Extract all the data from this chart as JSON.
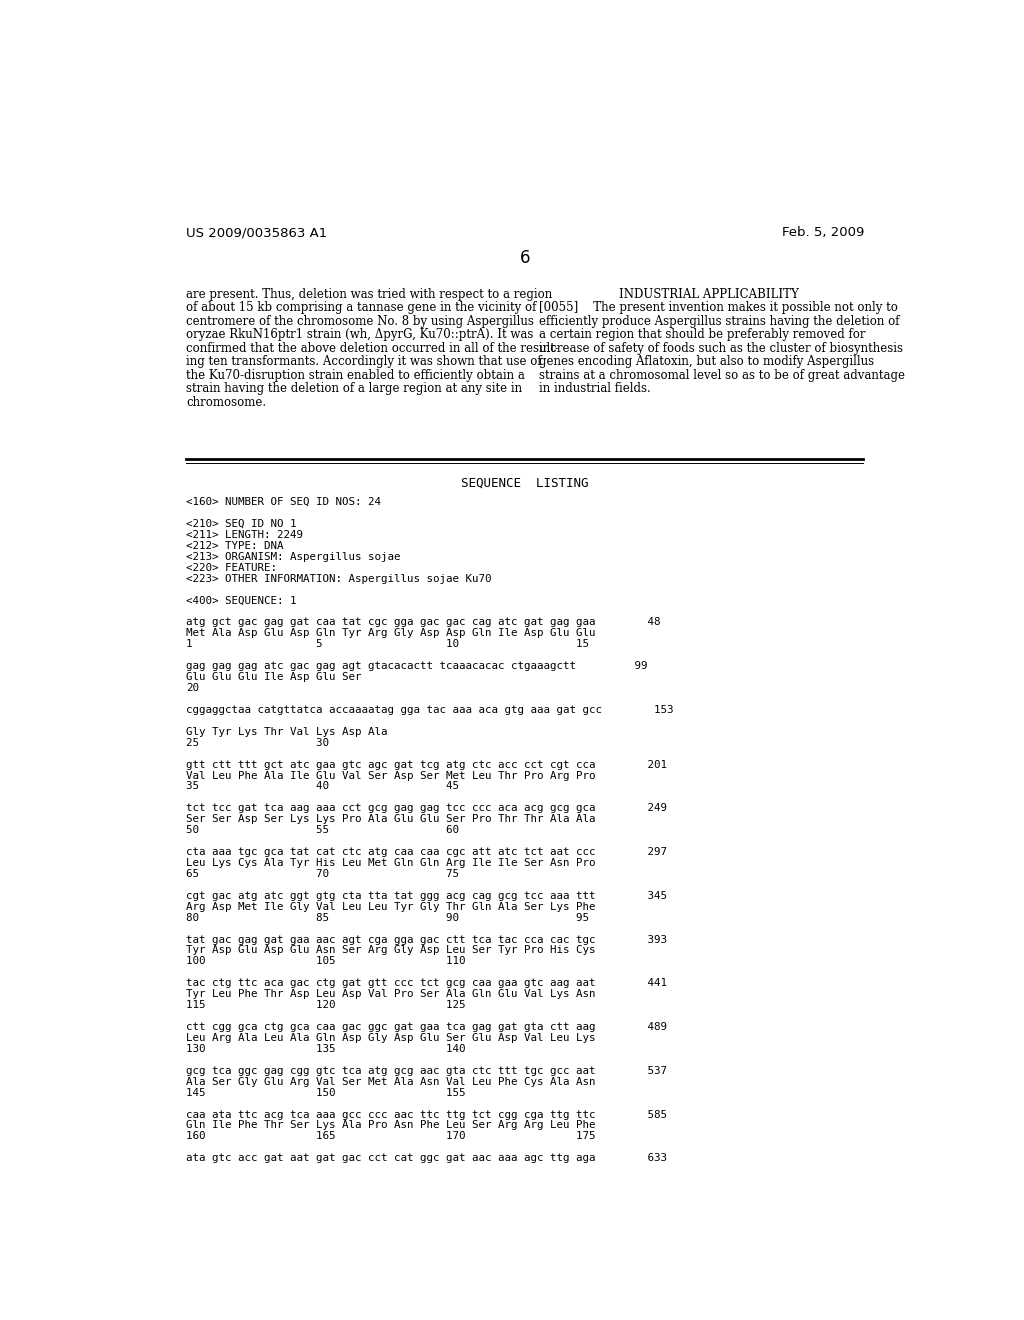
{
  "page_header_left": "US 2009/0035863 A1",
  "page_header_right": "Feb. 5, 2009",
  "page_number": "6",
  "left_column_text": [
    "are present. Thus, deletion was tried with respect to a region",
    "of about 15 kb comprising a tannase gene in the vicinity of",
    "centromere of the chromosome No. 8 by using Aspergillus",
    "oryzae RkuN16ptr1 strain (wh, ΔpyrG, Ku70::ptrA). It was",
    "confirmed that the above deletion occurred in all of the result-",
    "ing ten transformants. Accordingly it was shown that use of",
    "the Ku70-disruption strain enabled to efficiently obtain a",
    "strain having the deletion of a large region at any site in",
    "chromosome."
  ],
  "right_column_heading": "INDUSTRIAL APPLICABILITY",
  "right_column_text": [
    "[0055]    The present invention makes it possible not only to",
    "efficiently produce Aspergillus strains having the deletion of",
    "a certain region that should be preferably removed for",
    "increase of safety of foods such as the cluster of biosynthesis",
    "genes encoding Aflatoxin, but also to modify Aspergillus",
    "strains at a chromosomal level so as to be of great advantage",
    "in industrial fields."
  ],
  "sequence_listing_header": "SEQUENCE  LISTING",
  "sequence_lines": [
    "<160> NUMBER OF SEQ ID NOS: 24",
    "",
    "<210> SEQ ID NO 1",
    "<211> LENGTH: 2249",
    "<212> TYPE: DNA",
    "<213> ORGANISM: Aspergillus sojae",
    "<220> FEATURE:",
    "<223> OTHER INFORMATION: Aspergillus sojae Ku70",
    "",
    "<400> SEQUENCE: 1",
    "",
    "atg gct gac gag gat caa tat cgc gga gac gac cag atc gat gag gaa        48",
    "Met Ala Asp Glu Asp Gln Tyr Arg Gly Asp Asp Gln Ile Asp Glu Glu",
    "1                   5                   10                  15",
    "",
    "gag gag gag atc gac gag agt gtacacactt tcaaacacac ctgaaagctt         99",
    "Glu Glu Glu Ile Asp Glu Ser",
    "20",
    "",
    "cggaggctaa catgttatca accaaaatag gga tac aaa aca gtg aaa gat gcc        153",
    "",
    "Gly Tyr Lys Thr Val Lys Asp Ala",
    "25                  30",
    "",
    "gtt ctt ttt gct atc gaa gtc agc gat tcg atg ctc acc cct cgt cca        201",
    "Val Leu Phe Ala Ile Glu Val Ser Asp Ser Met Leu Thr Pro Arg Pro",
    "35                  40                  45",
    "",
    "tct tcc gat tca aag aaa cct gcg gag gag tcc ccc aca acg gcg gca        249",
    "Ser Ser Asp Ser Lys Lys Pro Ala Glu Glu Ser Pro Thr Thr Ala Ala",
    "50                  55                  60",
    "",
    "cta aaa tgc gca tat cat ctc atg caa caa cgc att atc tct aat ccc        297",
    "Leu Lys Cys Ala Tyr His Leu Met Gln Gln Arg Ile Ile Ser Asn Pro",
    "65                  70                  75",
    "",
    "cgt gac atg atc ggt gtg cta tta tat ggg acg cag gcg tcc aaa ttt        345",
    "Arg Asp Met Ile Gly Val Leu Leu Tyr Gly Thr Gln Ala Ser Lys Phe",
    "80                  85                  90                  95",
    "",
    "tat gac gag gat gaa aac agt cga gga gac ctt tca tac cca cac tgc        393",
    "Tyr Asp Glu Asp Glu Asn Ser Arg Gly Asp Leu Ser Tyr Pro His Cys",
    "100                 105                 110",
    "",
    "tac ctg ttc aca gac ctg gat gtt ccc tct gcg caa gaa gtc aag aat        441",
    "Tyr Leu Phe Thr Asp Leu Asp Val Pro Ser Ala Gln Glu Val Lys Asn",
    "115                 120                 125",
    "",
    "ctt cgg gca ctg gca caa gac ggc gat gaa tca gag gat gta ctt aag        489",
    "Leu Arg Ala Leu Ala Gln Asp Gly Asp Glu Ser Glu Asp Val Leu Lys",
    "130                 135                 140",
    "",
    "gcg tca ggc gag cgg gtc tca atg gcg aac gta ctc ttt tgc gcc aat        537",
    "Ala Ser Gly Glu Arg Val Ser Met Ala Asn Val Leu Phe Cys Ala Asn",
    "145                 150                 155",
    "",
    "caa ata ttc acg tca aaa gcc ccc aac ttc ttg tct cgg cga ttg ttc        585",
    "Gln Ile Phe Thr Ser Lys Ala Pro Asn Phe Leu Ser Arg Arg Leu Phe",
    "160                 165                 170                 175",
    "",
    "ata gtc acc gat aat gat gac cct cat ggc gat aac aaa agc ttg aga        633"
  ],
  "bg_color": "#ffffff",
  "text_color": "#000000",
  "font_size_header": 9.5,
  "font_size_body": 8.5,
  "font_size_mono": 7.8,
  "font_size_page_num": 12
}
